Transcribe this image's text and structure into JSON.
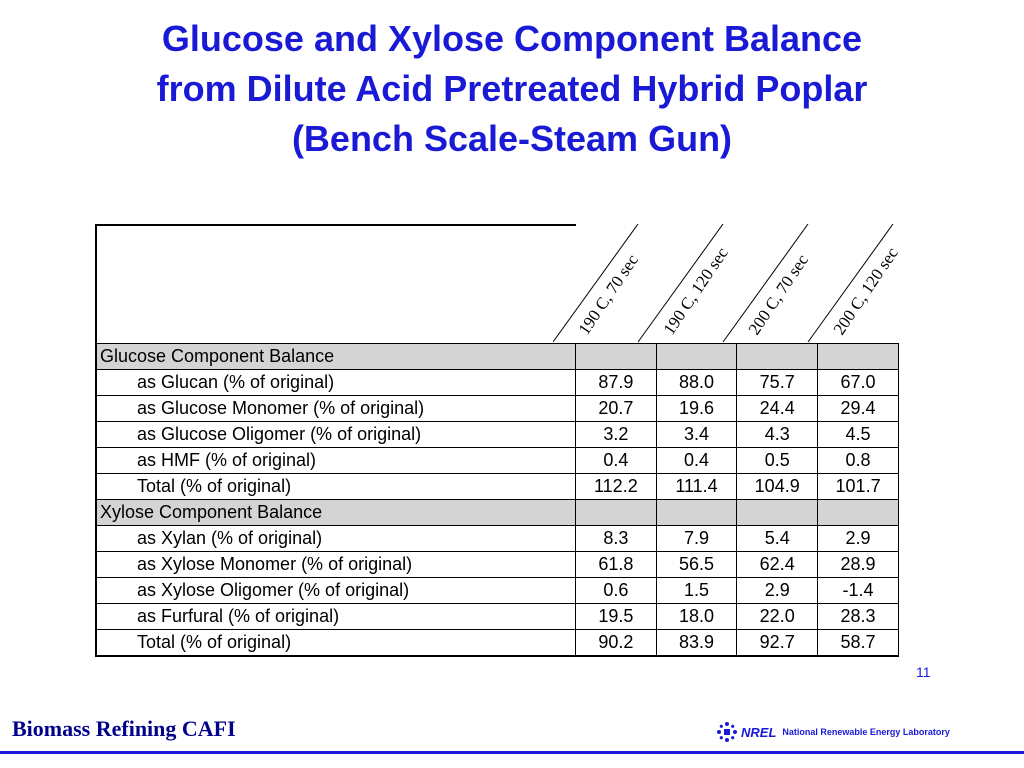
{
  "slide": {
    "title_lines": [
      "Glucose and Xylose Component Balance",
      "from Dilute Acid Pretreated Hybrid Poplar",
      "(Bench Scale-Steam Gun)"
    ],
    "page_number": "11",
    "footer_left": "Biomass Refining CAFI",
    "logo": {
      "wordmark": "NREL",
      "full_name": "National Renewable Energy Laboratory",
      "icon": "nrel-logo-icon"
    }
  },
  "table": {
    "columns": [
      "190 C, 70 sec",
      "190 C, 120 sec",
      "200 C, 70 sec",
      "200 C, 120 sec"
    ],
    "sections": [
      {
        "title": "Glucose Component Balance",
        "rows": [
          {
            "label": "as Glucan (% of original)",
            "values": [
              "87.9",
              "88.0",
              "75.7",
              "67.0"
            ]
          },
          {
            "label": "as Glucose Monomer (% of original)",
            "values": [
              "20.7",
              "19.6",
              "24.4",
              "29.4"
            ]
          },
          {
            "label": "as Glucose Oligomer (% of original)",
            "values": [
              "3.2",
              "3.4",
              "4.3",
              "4.5"
            ]
          },
          {
            "label": "as HMF (% of original)",
            "values": [
              "0.4",
              "0.4",
              "0.5",
              "0.8"
            ]
          },
          {
            "label": "Total (% of original)",
            "values": [
              "112.2",
              "111.4",
              "104.9",
              "101.7"
            ]
          }
        ]
      },
      {
        "title": "Xylose Component Balance",
        "rows": [
          {
            "label": "as Xylan (% of original)",
            "values": [
              "8.3",
              "7.9",
              "5.4",
              "2.9"
            ]
          },
          {
            "label": "as Xylose Monomer (% of original)",
            "values": [
              "61.8",
              "56.5",
              "62.4",
              "28.9"
            ]
          },
          {
            "label": "as Xylose Oligomer (% of original)",
            "values": [
              "0.6",
              "1.5",
              "2.9",
              "-1.4"
            ]
          },
          {
            "label": "as Furfural (% of original)",
            "values": [
              "19.5",
              "18.0",
              "22.0",
              "28.3"
            ]
          },
          {
            "label": "Total (% of original)",
            "values": [
              "90.2",
              "83.9",
              "92.7",
              "58.7"
            ]
          }
        ]
      }
    ]
  },
  "colors": {
    "title": "#1a1ad6",
    "section_fill": "#d4d4d4",
    "footer_text": "#00008b",
    "footer_bar": "#1a1ad6"
  }
}
